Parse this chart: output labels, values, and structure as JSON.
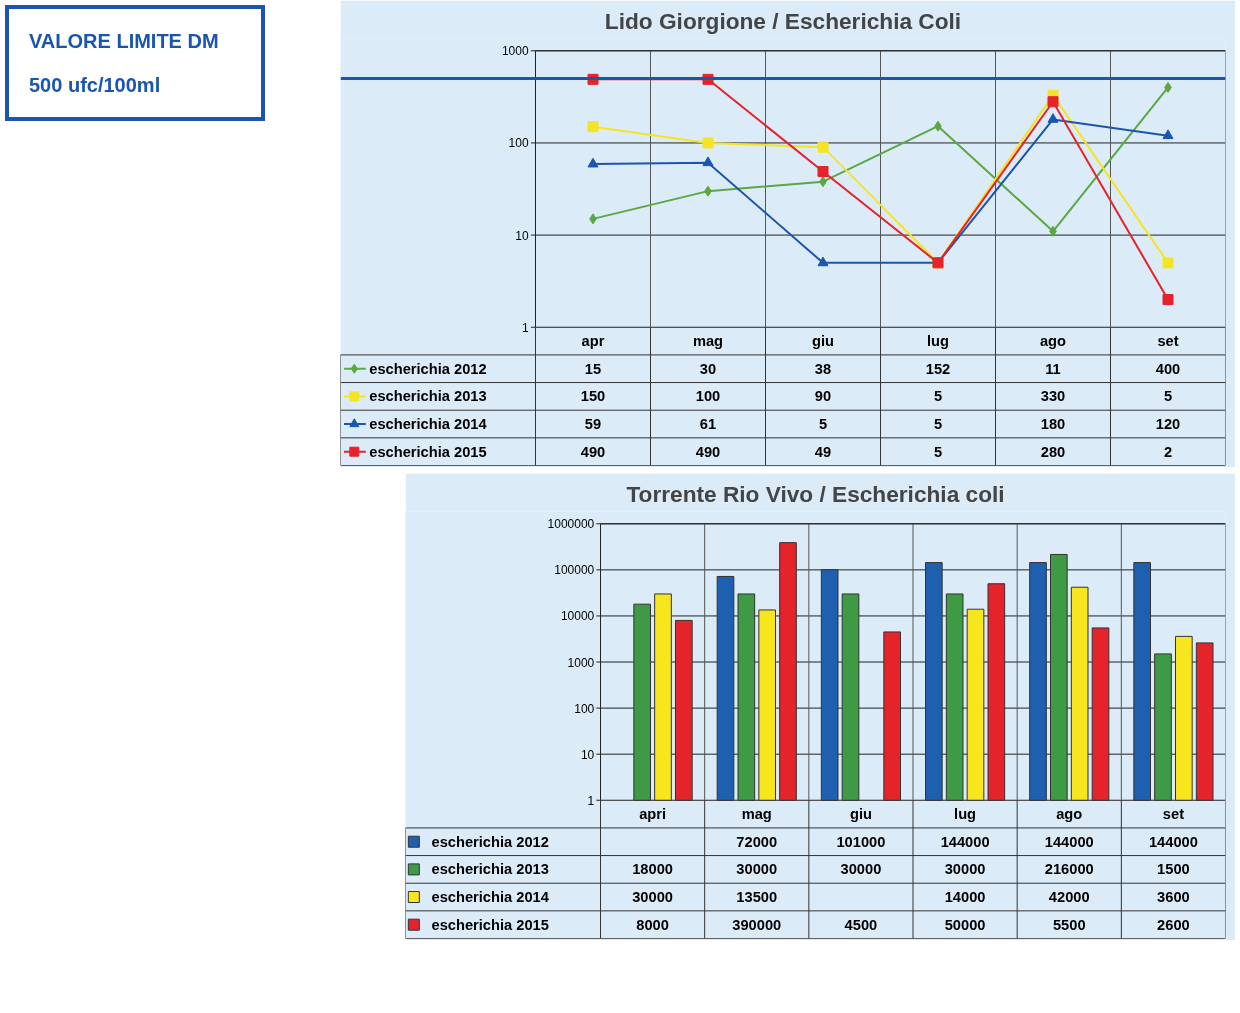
{
  "chart_data": [
    {
      "type": "line",
      "title": "Lido Giorgione / Escherichia Coli",
      "categories": [
        "apr",
        "mag",
        "giu",
        "lug",
        "ago",
        "set"
      ],
      "log": true,
      "ylim": [
        1,
        1000
      ],
      "yticks": [
        1,
        10,
        100,
        1000
      ],
      "grid": true,
      "legend": "bottom left",
      "data_labels": true,
      "series": [
        {
          "name": "escherichia 2012",
          "color": "#5aa843",
          "marker": "diamond",
          "values": [
            15,
            30,
            38,
            152,
            11,
            400
          ]
        },
        {
          "name": "escherichia 2013",
          "color": "#f5e425",
          "marker": "square",
          "values": [
            150,
            100,
            90,
            5,
            330,
            5
          ]
        },
        {
          "name": "escherichia 2014",
          "color": "#1a56b0",
          "marker": "triangle",
          "values": [
            59,
            61,
            5,
            5,
            180,
            120
          ]
        },
        {
          "name": "escherichia 2015",
          "color": "#e5232b",
          "marker": "square",
          "values": [
            490,
            490,
            49,
            5,
            280,
            2
          ]
        }
      ],
      "ref_lines": [
        {
          "axis": "y",
          "value": 500,
          "label": "VALORE LIMITE DM\n500 ufc/100ml",
          "color": "#1a56b0"
        }
      ]
    },
    {
      "type": "bar",
      "title": "Torrente Rio Vivo / Escherichia coli",
      "categories": [
        "apri",
        "mag",
        "giu",
        "lug",
        "ago",
        "set"
      ],
      "log": true,
      "ylim": [
        1,
        1000000
      ],
      "yticks": [
        1,
        10,
        100,
        1000,
        10000,
        100000,
        1000000
      ],
      "grid": true,
      "legend": "bottom left",
      "data_labels": true,
      "series": [
        {
          "name": "escherichia 2012",
          "color": "#1f5fb0",
          "values": [
            null,
            72000,
            101000,
            144000,
            144000,
            144000
          ]
        },
        {
          "name": "escherichia 2013",
          "color": "#3e9a45",
          "values": [
            18000,
            30000,
            30000,
            30000,
            216000,
            1500
          ]
        },
        {
          "name": "escherichia 2014",
          "color": "#f7e51e",
          "values": [
            30000,
            13500,
            null,
            14000,
            42000,
            3600
          ]
        },
        {
          "name": "escherichia 2015",
          "color": "#e5232b",
          "values": [
            8000,
            390000,
            4500,
            50000,
            5500,
            2600
          ]
        }
      ]
    }
  ]
}
